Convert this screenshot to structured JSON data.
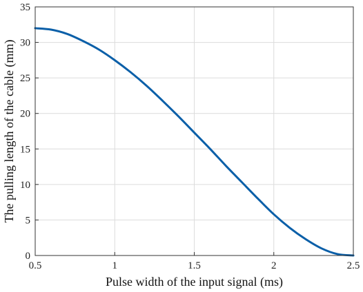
{
  "chart_data": {
    "type": "line",
    "title": "",
    "xlabel": "Pulse width of the input signal (ms)",
    "ylabel": "The pulling length of the cable (mm)",
    "xlim": [
      0.5,
      2.5
    ],
    "ylim": [
      0,
      35
    ],
    "grid": true,
    "x_ticks": [
      0.5,
      1,
      1.5,
      2,
      2.5
    ],
    "x_tick_labels": [
      "0.5",
      "1",
      "1.5",
      "2",
      "2.5"
    ],
    "y_ticks": [
      0,
      5,
      10,
      15,
      20,
      25,
      30,
      35
    ],
    "y_tick_labels": [
      "0",
      "5",
      "10",
      "15",
      "20",
      "25",
      "30",
      "35"
    ],
    "series": [
      {
        "color": "#0a5fa8",
        "x": [
          0.5,
          0.6,
          0.7,
          0.8,
          0.9,
          1.0,
          1.1,
          1.2,
          1.3,
          1.4,
          1.5,
          1.6,
          1.7,
          1.8,
          1.9,
          2.0,
          2.1,
          2.2,
          2.3,
          2.4,
          2.5
        ],
        "y": [
          32.0,
          31.8,
          31.2,
          30.2,
          29.0,
          27.5,
          25.8,
          23.9,
          21.8,
          19.6,
          17.3,
          15.0,
          12.6,
          10.3,
          8.0,
          5.8,
          3.9,
          2.3,
          1.0,
          0.2,
          0.0
        ]
      }
    ]
  }
}
